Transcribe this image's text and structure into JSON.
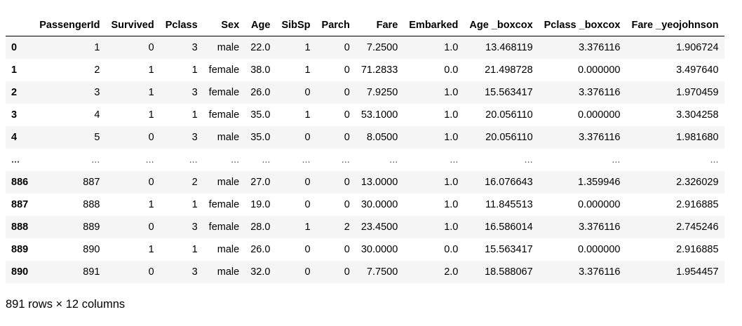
{
  "table": {
    "columns": [
      "",
      "PassengerId",
      "Survived",
      "Pclass",
      "Sex",
      "Age",
      "SibSp",
      "Parch",
      "Fare",
      "Embarked",
      "Age _boxcox",
      "Pclass _boxcox",
      "Fare _yeojohnson"
    ],
    "rows": [
      [
        "0",
        "1",
        "0",
        "3",
        "male",
        "22.0",
        "1",
        "0",
        "7.2500",
        "1.0",
        "13.468119",
        "3.376116",
        "1.906724"
      ],
      [
        "1",
        "2",
        "1",
        "1",
        "female",
        "38.0",
        "1",
        "0",
        "71.2833",
        "0.0",
        "21.498728",
        "0.000000",
        "3.497640"
      ],
      [
        "2",
        "3",
        "1",
        "3",
        "female",
        "26.0",
        "0",
        "0",
        "7.9250",
        "1.0",
        "15.563417",
        "3.376116",
        "1.970459"
      ],
      [
        "3",
        "4",
        "1",
        "1",
        "female",
        "35.0",
        "1",
        "0",
        "53.1000",
        "1.0",
        "20.056110",
        "0.000000",
        "3.304258"
      ],
      [
        "4",
        "5",
        "0",
        "3",
        "male",
        "35.0",
        "0",
        "0",
        "8.0500",
        "1.0",
        "20.056110",
        "3.376116",
        "1.981680"
      ],
      [
        "...",
        "...",
        "...",
        "...",
        "...",
        "...",
        "...",
        "...",
        "...",
        "...",
        "...",
        "...",
        "..."
      ],
      [
        "886",
        "887",
        "0",
        "2",
        "male",
        "27.0",
        "0",
        "0",
        "13.0000",
        "1.0",
        "16.076643",
        "1.359946",
        "2.326029"
      ],
      [
        "887",
        "888",
        "1",
        "1",
        "female",
        "19.0",
        "0",
        "0",
        "30.0000",
        "1.0",
        "11.845513",
        "0.000000",
        "2.916885"
      ],
      [
        "888",
        "889",
        "0",
        "3",
        "female",
        "28.0",
        "1",
        "2",
        "23.4500",
        "1.0",
        "16.586014",
        "3.376116",
        "2.745246"
      ],
      [
        "889",
        "890",
        "1",
        "1",
        "male",
        "26.0",
        "0",
        "0",
        "30.0000",
        "0.0",
        "15.563417",
        "0.000000",
        "2.916885"
      ],
      [
        "890",
        "891",
        "0",
        "3",
        "male",
        "32.0",
        "0",
        "0",
        "7.7500",
        "2.0",
        "18.588067",
        "3.376116",
        "1.954457"
      ]
    ]
  },
  "shape_text": "891 rows × 12 columns"
}
